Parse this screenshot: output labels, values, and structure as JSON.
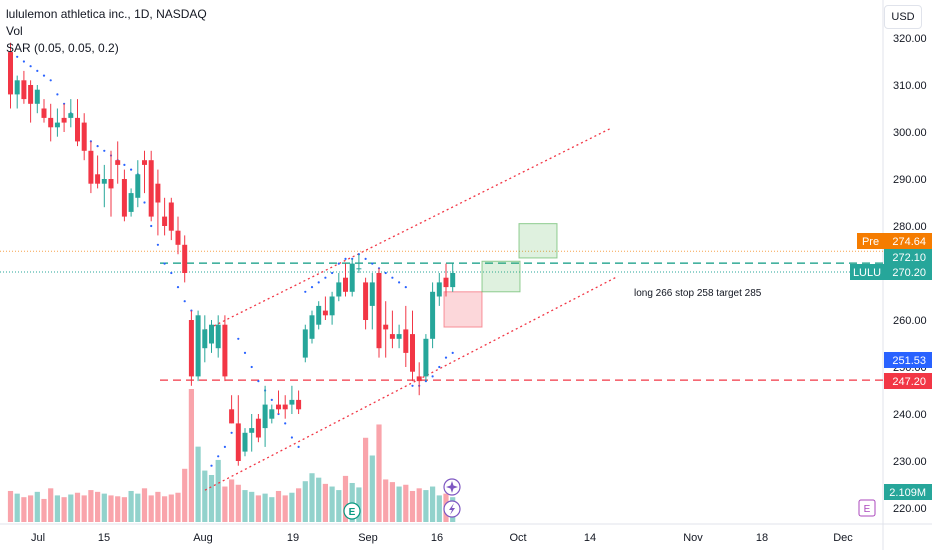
{
  "chart_data": {
    "type": "candlestick",
    "title": "lululemon athletica inc., 1D, NASDAQ",
    "indicators": [
      "Vol",
      "SAR (0.05, 0.05, 0.2)"
    ],
    "currency": "USD",
    "ylim": [
      216,
      324
    ],
    "y_ticks": [
      220,
      230,
      240,
      250,
      260,
      270,
      280,
      290,
      300,
      310,
      320
    ],
    "x_ticks": [
      "Jul",
      "15",
      "Aug",
      "19",
      "Sep",
      "16",
      "Oct",
      "14",
      "Nov",
      "18",
      "Dec"
    ],
    "annotation": "long 266 stop 258 target 285",
    "price_labels": [
      {
        "name": "Pre",
        "value": "274.64",
        "color": "#f57c00"
      },
      {
        "name": "",
        "value": "272.10",
        "color": "#26a69a"
      },
      {
        "name": "LULU",
        "value": "270.20",
        "color": "#26a69a"
      },
      {
        "name": "",
        "value": "251.53",
        "color": "#2962ff"
      },
      {
        "name": "",
        "value": "247.20",
        "color": "#f23645"
      },
      {
        "name": "",
        "value": "2.109M",
        "color": "#26a69a"
      }
    ],
    "levels": {
      "support": 247.2,
      "long": 272.1,
      "last": 270.2,
      "pre": 274.64
    },
    "candles": [
      {
        "o": 317,
        "h": 319,
        "l": 305,
        "c": 308
      },
      {
        "o": 308,
        "h": 312,
        "l": 305,
        "c": 311
      },
      {
        "o": 311,
        "h": 313,
        "l": 306,
        "c": 307
      },
      {
        "o": 310,
        "h": 311,
        "l": 302,
        "c": 306
      },
      {
        "o": 306,
        "h": 310,
        "l": 304,
        "c": 309
      },
      {
        "o": 305,
        "h": 307,
        "l": 302,
        "c": 303
      },
      {
        "o": 303,
        "h": 306,
        "l": 298,
        "c": 301
      },
      {
        "o": 301,
        "h": 305,
        "l": 299,
        "c": 302
      },
      {
        "o": 303,
        "h": 306,
        "l": 300,
        "c": 302
      },
      {
        "o": 303,
        "h": 307,
        "l": 301,
        "c": 304
      },
      {
        "o": 303,
        "h": 307,
        "l": 297,
        "c": 298
      },
      {
        "o": 302,
        "h": 304,
        "l": 294,
        "c": 296
      },
      {
        "o": 296,
        "h": 298,
        "l": 287,
        "c": 289
      },
      {
        "o": 291,
        "h": 295,
        "l": 288,
        "c": 289
      },
      {
        "o": 289,
        "h": 293,
        "l": 284,
        "c": 290
      },
      {
        "o": 290,
        "h": 296,
        "l": 282,
        "c": 288
      },
      {
        "o": 294,
        "h": 298,
        "l": 289,
        "c": 293
      },
      {
        "o": 290,
        "h": 292,
        "l": 281,
        "c": 282
      },
      {
        "o": 283,
        "h": 288,
        "l": 282,
        "c": 287
      },
      {
        "o": 286,
        "h": 294,
        "l": 284,
        "c": 291
      },
      {
        "o": 294,
        "h": 296,
        "l": 287,
        "c": 293
      },
      {
        "o": 294,
        "h": 296,
        "l": 281,
        "c": 282
      },
      {
        "o": 289,
        "h": 292,
        "l": 278,
        "c": 285
      },
      {
        "o": 282,
        "h": 286,
        "l": 278,
        "c": 280
      },
      {
        "o": 285,
        "h": 286,
        "l": 277,
        "c": 279
      },
      {
        "o": 279,
        "h": 282,
        "l": 274,
        "c": 276
      },
      {
        "o": 276,
        "h": 278,
        "l": 268,
        "c": 270
      },
      {
        "o": 260,
        "h": 262,
        "l": 246,
        "c": 248
      },
      {
        "o": 248,
        "h": 262,
        "l": 247,
        "c": 261
      },
      {
        "o": 254,
        "h": 261,
        "l": 251,
        "c": 258
      },
      {
        "o": 255,
        "h": 260,
        "l": 253,
        "c": 259
      },
      {
        "o": 254,
        "h": 261,
        "l": 252,
        "c": 259
      },
      {
        "o": 259,
        "h": 261,
        "l": 247,
        "c": 248
      },
      {
        "o": 241,
        "h": 244,
        "l": 238,
        "c": 238
      },
      {
        "o": 238,
        "h": 244,
        "l": 229,
        "c": 230
      },
      {
        "o": 232,
        "h": 237,
        "l": 231,
        "c": 236
      },
      {
        "o": 236,
        "h": 240,
        "l": 232,
        "c": 237
      },
      {
        "o": 239,
        "h": 240,
        "l": 234,
        "c": 235
      },
      {
        "o": 237,
        "h": 246,
        "l": 233,
        "c": 242
      },
      {
        "o": 239,
        "h": 242,
        "l": 238,
        "c": 241
      },
      {
        "o": 242,
        "h": 245,
        "l": 240,
        "c": 241
      },
      {
        "o": 242,
        "h": 244,
        "l": 239,
        "c": 241
      },
      {
        "o": 242,
        "h": 246,
        "l": 240,
        "c": 243
      },
      {
        "o": 243,
        "h": 245,
        "l": 240,
        "c": 241
      },
      {
        "o": 252,
        "h": 259,
        "l": 251,
        "c": 258
      },
      {
        "o": 256,
        "h": 262,
        "l": 255,
        "c": 261
      },
      {
        "o": 259,
        "h": 264,
        "l": 258,
        "c": 263
      },
      {
        "o": 262,
        "h": 265,
        "l": 260,
        "c": 261
      },
      {
        "o": 261,
        "h": 266,
        "l": 259,
        "c": 265
      },
      {
        "o": 265,
        "h": 270,
        "l": 264,
        "c": 268
      },
      {
        "o": 269,
        "h": 272,
        "l": 265,
        "c": 266
      },
      {
        "o": 266,
        "h": 273,
        "l": 265,
        "c": 272
      },
      {
        "o": 271,
        "h": 274,
        "l": 270,
        "c": 271
      },
      {
        "o": 268,
        "h": 269,
        "l": 258,
        "c": 260
      },
      {
        "o": 263,
        "h": 270,
        "l": 258,
        "c": 268
      },
      {
        "o": 270,
        "h": 271,
        "l": 252,
        "c": 254
      },
      {
        "o": 259,
        "h": 264,
        "l": 252,
        "c": 258
      },
      {
        "o": 257,
        "h": 262,
        "l": 254,
        "c": 256
      },
      {
        "o": 256,
        "h": 259,
        "l": 254,
        "c": 257
      },
      {
        "o": 258,
        "h": 263,
        "l": 250,
        "c": 253
      },
      {
        "o": 257,
        "h": 262,
        "l": 247,
        "c": 249
      },
      {
        "o": 248,
        "h": 251,
        "l": 244,
        "c": 247
      },
      {
        "o": 248,
        "h": 257,
        "l": 247,
        "c": 256
      },
      {
        "o": 256,
        "h": 268,
        "l": 254,
        "c": 266
      },
      {
        "o": 265,
        "h": 270,
        "l": 263,
        "c": 268
      },
      {
        "o": 269,
        "h": 272,
        "l": 265,
        "c": 267
      },
      {
        "o": 267,
        "h": 272,
        "l": 266,
        "c": 270
      }
    ],
    "sar": [
      317,
      316,
      315,
      314,
      313,
      312,
      311,
      308,
      306,
      304,
      302,
      300,
      298,
      297,
      296,
      295,
      294,
      293,
      292,
      291,
      285,
      280,
      276,
      272,
      270,
      267,
      264,
      262,
      259,
      257,
      229,
      231,
      233,
      236,
      256,
      253,
      250,
      247,
      245,
      243,
      240,
      238,
      235,
      233,
      266,
      267,
      268,
      269,
      270,
      272,
      273,
      273,
      274,
      273,
      272,
      271,
      270,
      269,
      268,
      267,
      246,
      246,
      247,
      248,
      250,
      252,
      253
    ],
    "volume": [
      35,
      32,
      28,
      30,
      34,
      26,
      38,
      30,
      28,
      31,
      33,
      30,
      36,
      34,
      32,
      30,
      29,
      28,
      35,
      32,
      38,
      30,
      34,
      29,
      31,
      33,
      60,
      150,
      85,
      58,
      53,
      70,
      40,
      48,
      42,
      36,
      34,
      30,
      32,
      28,
      35,
      30,
      33,
      38,
      46,
      55,
      50,
      43,
      40,
      36,
      52,
      44,
      39,
      95,
      75,
      110,
      48,
      45,
      40,
      42,
      35,
      38,
      36,
      40,
      30,
      32,
      28
    ]
  }
}
